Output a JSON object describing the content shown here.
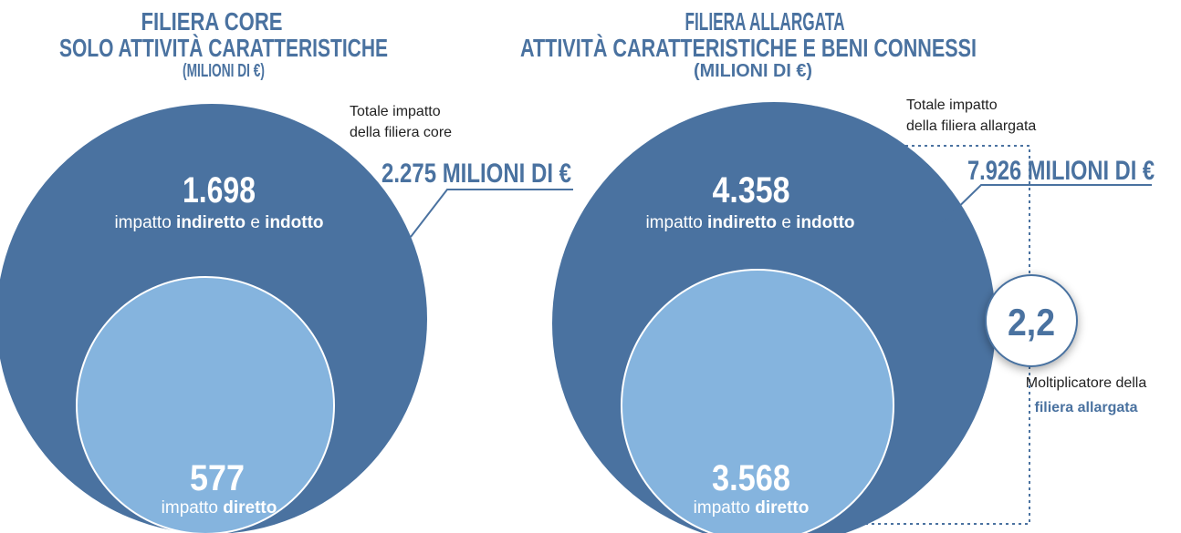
{
  "left": {
    "title": [
      "FILIERA CORE",
      "SOLO ATTIVITÀ CARATTERISTICHE",
      "(MILIONI DI €)"
    ],
    "total_label": [
      "Totale impatto",
      "della filiera core"
    ],
    "total_value": "2.275 MILIONI DI €",
    "outer": {
      "value": "1.698",
      "label": [
        "impatto ",
        "indiretto",
        " e ",
        "indotto"
      ]
    },
    "inner": {
      "value": "577",
      "label": [
        "impatto ",
        "diretto"
      ]
    }
  },
  "right": {
    "title": [
      "FILIERA ALLARGATA",
      "ATTIVITÀ CARATTERISTICHE E BENI CONNESSI",
      "(MILIONI DI €)"
    ],
    "total_label": [
      "Totale impatto",
      "della filiera allargata"
    ],
    "total_value": "7.926 MILIONI DI €",
    "outer": {
      "value": "4.358",
      "label": [
        "impatto ",
        "indiretto",
        " e ",
        "indotto"
      ]
    },
    "inner": {
      "value": "3.568",
      "label": [
        "impatto ",
        "diretto"
      ]
    },
    "multiplier": {
      "value": "2,2",
      "label": [
        "Moltiplicatore della",
        "filiera allargata"
      ]
    }
  }
}
